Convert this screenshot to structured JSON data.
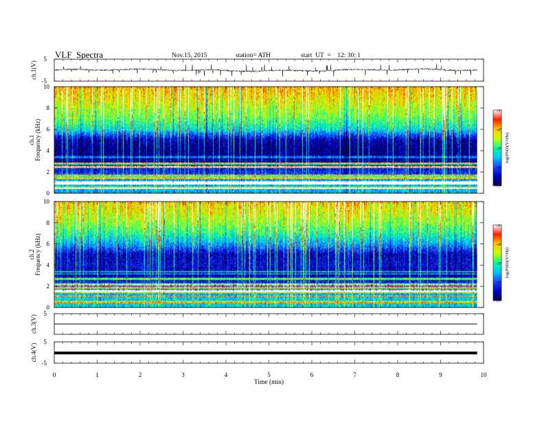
{
  "header": {
    "title": "VLF  Spectra",
    "date": "Nov.15, 2015",
    "station": "station= ATH",
    "start": "start  UT  =    12: 30: 1"
  },
  "chart_data": [
    {
      "type": "line",
      "panel": "ch1-waveform",
      "ylabel": "ch.1(V)",
      "ylim": [
        -5,
        5
      ],
      "yticks": [
        "5",
        "-5"
      ],
      "xlim": [
        0,
        10
      ],
      "x_duration_min": 9.85,
      "baseline_v": 0.0,
      "noise_amplitude_v": 0.6,
      "spike_amplitude_v": 1.8
    },
    {
      "type": "heatmap",
      "panel": "ch1-spectrogram",
      "ylabel": "ch.1\nFrequency (kHz)",
      "ylabel_lines": [
        "ch.1",
        "Frequency  (kHz)"
      ],
      "ylim": [
        0,
        10
      ],
      "yticks": [
        "0",
        "2",
        "4",
        "6",
        "8",
        "10"
      ],
      "xlim": [
        0,
        10
      ],
      "x_duration_min": 9.85,
      "colorbar": {
        "label": "log(PSD)(V²/Hz)",
        "range": [
          -7,
          -3
        ],
        "ticks": [
          "-3",
          "-4",
          "-5",
          "-6",
          "-7"
        ]
      },
      "frequency_profile_log_psd": [
        {
          "f_khz": 0.0,
          "level": -5.6
        },
        {
          "f_khz": 1.0,
          "level": -5.5
        },
        {
          "f_khz": 2.0,
          "level": -6.2
        },
        {
          "f_khz": 3.0,
          "level": -6.6
        },
        {
          "f_khz": 4.0,
          "level": -6.8
        },
        {
          "f_khz": 5.0,
          "level": -6.6
        },
        {
          "f_khz": 6.0,
          "level": -5.3
        },
        {
          "f_khz": 7.0,
          "level": -4.8
        },
        {
          "f_khz": 8.0,
          "level": -4.5
        },
        {
          "f_khz": 9.0,
          "level": -4.2
        },
        {
          "f_khz": 10.0,
          "level": -4.0
        }
      ]
    },
    {
      "type": "heatmap",
      "panel": "ch2-spectrogram",
      "ylabel": "ch.2\nFrequency (kHz)",
      "ylabel_lines": [
        "ch.2",
        "Frequency  (kHz)"
      ],
      "ylim": [
        0,
        10
      ],
      "yticks": [
        "0",
        "2",
        "4",
        "6",
        "8",
        "10"
      ],
      "xlim": [
        0,
        10
      ],
      "x_duration_min": 9.85,
      "colorbar": {
        "label": "log(PSD)(V²/Hz)",
        "range": [
          -7,
          -3
        ],
        "ticks": [
          "-3",
          "-4",
          "-5",
          "-6",
          "-7"
        ]
      },
      "frequency_profile_log_psd": [
        {
          "f_khz": 0.0,
          "level": -5.4
        },
        {
          "f_khz": 1.0,
          "level": -5.4
        },
        {
          "f_khz": 2.0,
          "level": -6.0
        },
        {
          "f_khz": 3.0,
          "level": -6.6
        },
        {
          "f_khz": 4.0,
          "level": -6.4
        },
        {
          "f_khz": 5.0,
          "level": -6.5
        },
        {
          "f_khz": 6.0,
          "level": -5.6
        },
        {
          "f_khz": 7.0,
          "level": -5.0
        },
        {
          "f_khz": 8.0,
          "level": -4.6
        },
        {
          "f_khz": 9.0,
          "level": -4.3
        },
        {
          "f_khz": 10.0,
          "level": -4.1
        }
      ]
    },
    {
      "type": "line",
      "panel": "ch3-waveform",
      "ylabel": "ch.3(V)",
      "ylim": [
        -5,
        5
      ],
      "yticks": [
        "5"
      ],
      "xlim": [
        0,
        10
      ],
      "x_duration_min": 9.85,
      "baseline_v": 0.0
    },
    {
      "type": "line",
      "panel": "ch4-waveform",
      "ylabel": "ch.4(V)",
      "ylim": [
        -5,
        5
      ],
      "yticks": [
        "5",
        "-5"
      ],
      "xlim": [
        0,
        10
      ],
      "x_duration_min": 9.85,
      "baseline_v": -0.2
    }
  ],
  "x_axis": {
    "label": "Time  (min)",
    "ticks": [
      "0",
      "1",
      "2",
      "3",
      "4",
      "5",
      "6",
      "7",
      "8",
      "9",
      "10"
    ]
  },
  "colors": {
    "colormap": [
      "#000050",
      "#0000c0",
      "#1e46ff",
      "#00c8ff",
      "#00ff96",
      "#c8ff00",
      "#ffc800",
      "#ff1e00",
      "#ffffff"
    ],
    "waveform": "#000000"
  }
}
